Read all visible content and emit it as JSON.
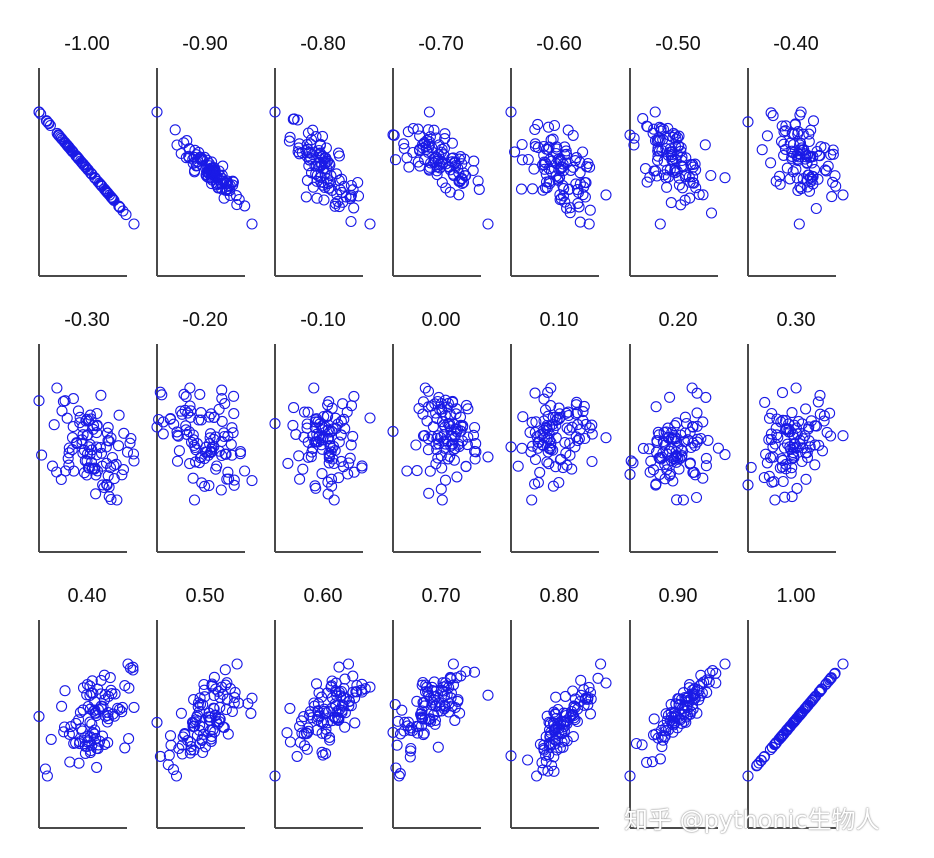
{
  "chart_data": {
    "type": "scatter",
    "rows": [
      [
        "-1.00",
        "-0.90",
        "-0.80",
        "-0.70",
        "-0.60",
        "-0.50",
        "-0.40"
      ],
      [
        "-0.30",
        "-0.20",
        "-0.10",
        "0.00",
        "0.10",
        "0.20",
        "0.30"
      ],
      [
        "0.40",
        "0.50",
        "0.60",
        "0.70",
        "0.80",
        "0.90",
        "1.00"
      ]
    ],
    "panel_titles": [
      "-1.00",
      "-0.90",
      "-0.80",
      "-0.70",
      "-0.60",
      "-0.50",
      "-0.40",
      "-0.30",
      "-0.20",
      "-0.10",
      "0.00",
      "0.10",
      "0.20",
      "0.30",
      "0.40",
      "0.50",
      "0.60",
      "0.70",
      "0.80",
      "0.90",
      "1.00"
    ],
    "correlations": [
      -1.0,
      -0.9,
      -0.8,
      -0.7,
      -0.6,
      -0.5,
      -0.4,
      -0.3,
      -0.2,
      -0.1,
      0.0,
      0.1,
      0.2,
      0.3,
      0.4,
      0.5,
      0.6,
      0.7,
      0.8,
      0.9,
      1.0
    ],
    "points_per_panel": 100,
    "marker": "open-circle",
    "marker_color": "#1a1ae6",
    "axis_color": "#4a4a4a",
    "grid": false
  },
  "watermark": {
    "text": "知乎 @pythonic生物人"
  }
}
